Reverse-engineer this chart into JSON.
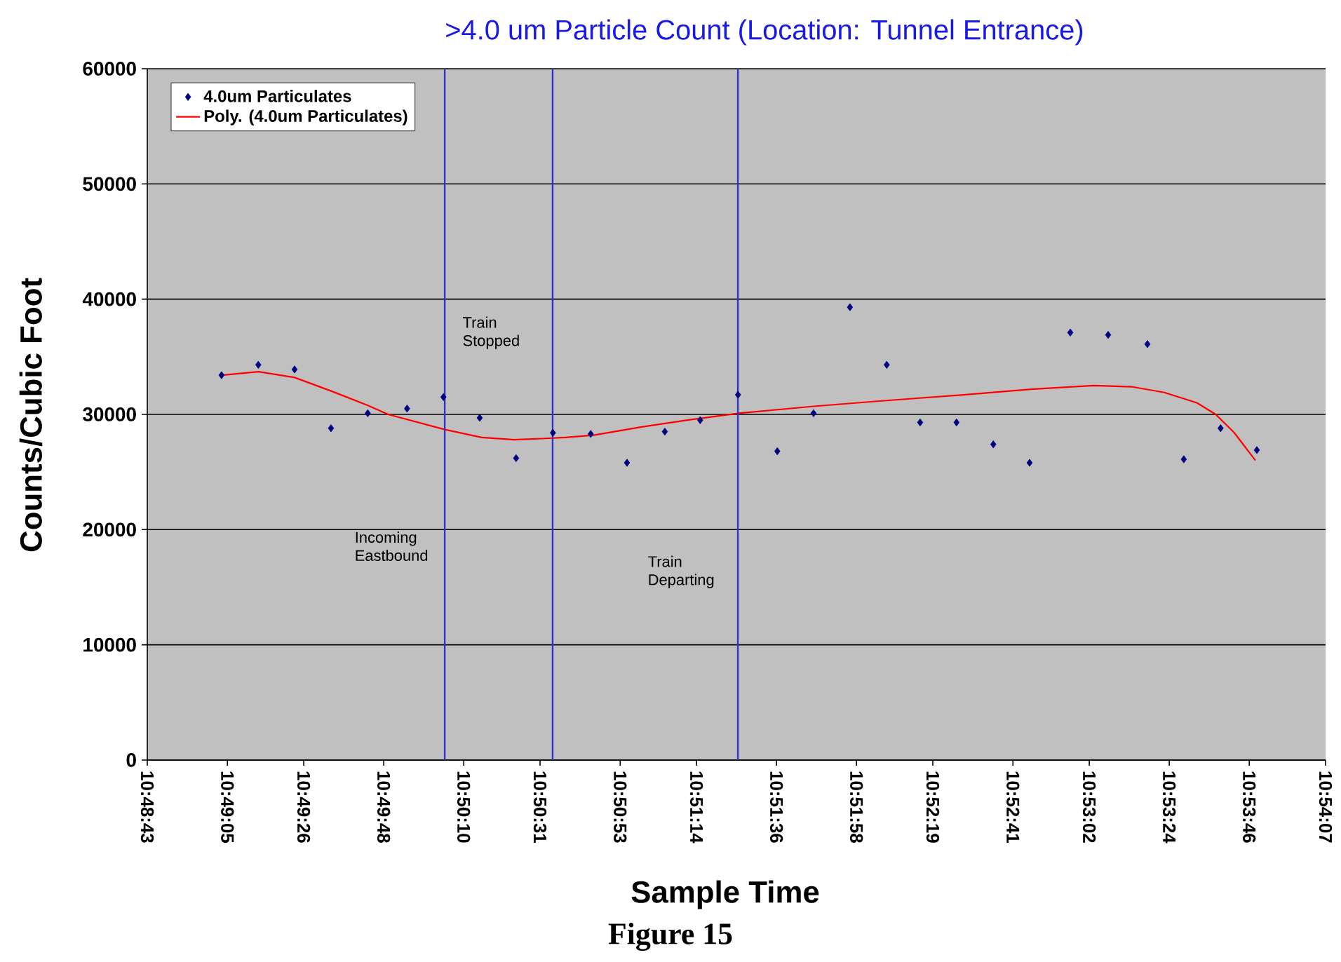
{
  "chart_data": {
    "type": "scatter",
    "title": ">4.0 um Particle Count (Location: Tunnel Entrance)",
    "xlabel": "Sample Time",
    "ylabel": "Counts/Cubic Foot",
    "annotations": [
      "Figure 15"
    ],
    "xlim": [
      10.81194,
      10.90194
    ],
    "ylim": [
      0,
      60000
    ],
    "xticks": [
      {
        "value": 10.81194,
        "label": "10:48:43"
      },
      {
        "value": 10.81806,
        "label": "10:49:05"
      },
      {
        "value": 10.82389,
        "label": "10:49:26"
      },
      {
        "value": 10.83,
        "label": "10:49:48"
      },
      {
        "value": 10.83611,
        "label": "10:50:10"
      },
      {
        "value": 10.84194,
        "label": "10:50:31"
      },
      {
        "value": 10.84806,
        "label": "10:50:53"
      },
      {
        "value": 10.85389,
        "label": "10:51:14"
      },
      {
        "value": 10.86,
        "label": "10:51:36"
      },
      {
        "value": 10.86611,
        "label": "10:51:58"
      },
      {
        "value": 10.87194,
        "label": "10:52:19"
      },
      {
        "value": 10.87806,
        "label": "10:52:41"
      },
      {
        "value": 10.88389,
        "label": "10:53:02"
      },
      {
        "value": 10.89,
        "label": "10:53:24"
      },
      {
        "value": 10.89611,
        "label": "10:53:46"
      },
      {
        "value": 10.90194,
        "label": "10:54:07"
      }
    ],
    "yticks": [
      0,
      10000,
      20000,
      30000,
      40000,
      50000,
      60000
    ],
    "series": [
      {
        "name": "4.0um Particulates",
        "color": "#000080",
        "x": [
          10.81761,
          10.82042,
          10.82319,
          10.82597,
          10.82878,
          10.83178,
          10.83456,
          10.83733,
          10.84011,
          10.84292,
          10.84581,
          10.84858,
          10.85147,
          10.85417,
          10.85706,
          10.86006,
          10.86283,
          10.86561,
          10.86842,
          10.87097,
          10.87375,
          10.87656,
          10.87933,
          10.88244,
          10.88533,
          10.88833,
          10.89111,
          10.89392,
          10.89669
        ],
        "values": [
          33400,
          34300,
          33900,
          28800,
          30100,
          30500,
          31500,
          29700,
          26200,
          28400,
          28300,
          25800,
          28500,
          29500,
          31700,
          26800,
          30100,
          39300,
          34300,
          29300,
          29300,
          27400,
          25800,
          37100,
          36900,
          36100,
          26100,
          28800,
          26900
        ]
      },
      {
        "name": "Poly. (4.0um Particulates)",
        "type": "line",
        "color": "#ff0000",
        "marker": "none",
        "x": [
          10.81761,
          10.82044,
          10.82319,
          10.82605,
          10.82873,
          10.83034,
          10.83462,
          10.83748,
          10.83998,
          10.84212,
          10.8439,
          10.84604,
          10.84962,
          10.85319,
          10.85712,
          10.86283,
          10.86837,
          10.87427,
          10.87962,
          10.88426,
          10.88712,
          10.88962,
          10.89211,
          10.89355,
          10.89497,
          10.89658
        ],
        "values": [
          33400,
          33700,
          33200,
          32000,
          30800,
          30000,
          28700,
          28000,
          27800,
          27900,
          28000,
          28200,
          28900,
          29500,
          30100,
          30700,
          31200,
          31700,
          32200,
          32500,
          32400,
          31900,
          31000,
          30000,
          28400,
          26000
        ]
      }
    ],
    "ref_lines": [
      {
        "axis": "x",
        "value": 10.83466,
        "label": "Incoming Eastbound",
        "color": "#3333cc"
      },
      {
        "axis": "x",
        "value": 10.8429,
        "label": "Train Stopped",
        "color": "#3333cc"
      },
      {
        "axis": "x",
        "value": 10.85705,
        "label": "Train Departing",
        "color": "#3333cc"
      }
    ],
    "grid": "y",
    "legend": "top left",
    "marker": "diamond"
  }
}
